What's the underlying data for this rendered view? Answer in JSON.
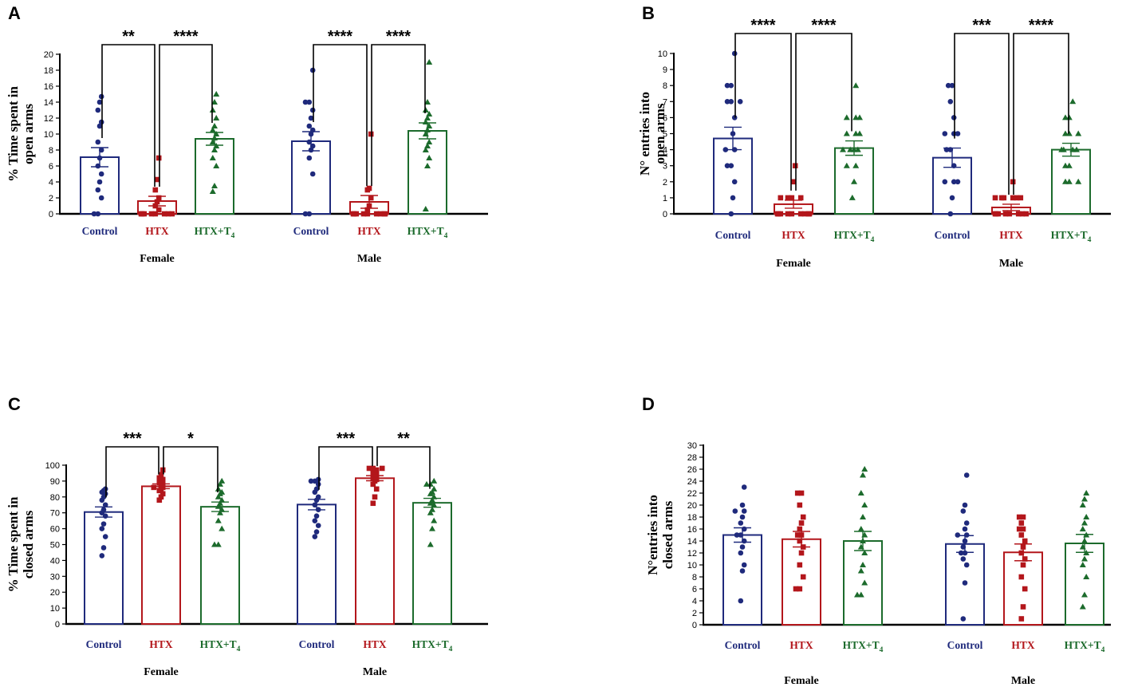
{
  "colors": {
    "control": "#1f2a7c",
    "htx": "#b3161b",
    "htxt4": "#1c6b2c",
    "axis": "#000000"
  },
  "chart_data": [
    {
      "panel": "A",
      "type": "bar",
      "ylabel": "% Time spent in open arms",
      "ylabel_lines": [
        "% Time spent in",
        "open arms"
      ],
      "ylim": [
        0,
        20
      ],
      "ticks": [
        0,
        2,
        4,
        6,
        8,
        10,
        12,
        14,
        16,
        18,
        20
      ],
      "groups": [
        {
          "name": "Female",
          "bars": [
            {
              "label": "Control",
              "mean": 7.1,
              "sem": 1.2,
              "points": [
                0,
                0,
                2,
                3,
                4,
                5,
                6,
                7,
                8,
                9,
                11,
                11.5,
                13,
                14,
                14.7
              ],
              "marker": "circle"
            },
            {
              "label": "HTX",
              "mean": 1.6,
              "sem": 0.6,
              "points": [
                0,
                0,
                0,
                0,
                0,
                0,
                0,
                0,
                0.5,
                1,
                1.5,
                2,
                3,
                4.3,
                7
              ],
              "marker": "square"
            },
            {
              "label": "HTX+T4",
              "mean": 9.4,
              "sem": 0.8,
              "points": [
                2.8,
                3.5,
                6,
                7,
                8,
                8.5,
                9,
                9.5,
                10,
                10.5,
                11,
                12,
                13,
                14,
                15
              ],
              "marker": "triangle"
            }
          ]
        },
        {
          "name": "Male",
          "bars": [
            {
              "label": "Control",
              "mean": 9.1,
              "sem": 1.2,
              "points": [
                0,
                0,
                5,
                7,
                8,
                8.5,
                9,
                10,
                10.5,
                11,
                12,
                13,
                14,
                14,
                18
              ],
              "marker": "circle"
            },
            {
              "label": "HTX",
              "mean": 1.5,
              "sem": 0.8,
              "points": [
                0,
                0,
                0,
                0,
                0,
                0,
                0,
                0,
                0,
                0.5,
                1,
                2,
                3,
                3.2,
                10
              ],
              "marker": "square"
            },
            {
              "label": "HTX+T4",
              "mean": 10.4,
              "sem": 1.0,
              "points": [
                0.6,
                6,
                7,
                8,
                8.5,
                9,
                10,
                10.5,
                11,
                11.5,
                12,
                12.5,
                13,
                14,
                19
              ],
              "marker": "triangle"
            }
          ]
        }
      ],
      "significance": [
        {
          "group": 0,
          "from": 0,
          "to": 1,
          "label": "**"
        },
        {
          "group": 0,
          "from": 1,
          "to": 2,
          "label": "****"
        },
        {
          "group": 1,
          "from": 0,
          "to": 1,
          "label": "****"
        },
        {
          "group": 1,
          "from": 1,
          "to": 2,
          "label": "****"
        }
      ]
    },
    {
      "panel": "B",
      "type": "bar",
      "ylabel": "N° entries into open arms",
      "ylabel_lines": [
        "N° entries into",
        "open arms"
      ],
      "ylim": [
        0,
        10
      ],
      "ticks": [
        0,
        1,
        2,
        3,
        4,
        5,
        6,
        7,
        8,
        9,
        10
      ],
      "groups": [
        {
          "name": "Female",
          "bars": [
            {
              "label": "Control",
              "mean": 4.7,
              "sem": 0.7,
              "points": [
                0,
                1,
                2,
                3,
                3,
                4,
                4,
                5,
                6,
                7,
                7,
                7,
                8,
                8,
                10
              ],
              "marker": "circle"
            },
            {
              "label": "HTX",
              "mean": 0.6,
              "sem": 0.25,
              "points": [
                0,
                0,
                0,
                0,
                0,
                0,
                0,
                0,
                0,
                1,
                1,
                1,
                1,
                2,
                3
              ],
              "marker": "square"
            },
            {
              "label": "HTX+T4",
              "mean": 4.1,
              "sem": 0.45,
              "points": [
                1,
                2,
                3,
                3,
                4,
                4,
                4,
                4,
                5,
                5,
                5,
                6,
                6,
                6,
                8
              ],
              "marker": "triangle"
            }
          ]
        },
        {
          "name": "Male",
          "bars": [
            {
              "label": "Control",
              "mean": 3.5,
              "sem": 0.6,
              "points": [
                0,
                1,
                2,
                2,
                2,
                3,
                4,
                4,
                5,
                5,
                5,
                6,
                7,
                8,
                8
              ],
              "marker": "circle"
            },
            {
              "label": "HTX",
              "mean": 0.4,
              "sem": 0.2,
              "points": [
                0,
                0,
                0,
                0,
                0,
                0,
                0,
                0,
                1,
                1,
                1,
                1,
                1,
                1,
                2
              ],
              "marker": "square"
            },
            {
              "label": "HTX+T4",
              "mean": 4.0,
              "sem": 0.4,
              "points": [
                2,
                2,
                2,
                3,
                3,
                4,
                4,
                4,
                4,
                5,
                5,
                5,
                6,
                6,
                7
              ],
              "marker": "triangle"
            }
          ]
        }
      ],
      "significance": [
        {
          "group": 0,
          "from": 0,
          "to": 1,
          "label": "****"
        },
        {
          "group": 0,
          "from": 1,
          "to": 2,
          "label": "****"
        },
        {
          "group": 1,
          "from": 0,
          "to": 1,
          "label": "***"
        },
        {
          "group": 1,
          "from": 1,
          "to": 2,
          "label": "****"
        }
      ]
    },
    {
      "panel": "C",
      "type": "bar",
      "ylabel": "% Time spent in closed arms",
      "ylabel_lines": [
        "% Time spent in",
        "closed arms"
      ],
      "ylim": [
        0,
        100
      ],
      "ticks": [
        0,
        10,
        20,
        30,
        40,
        50,
        60,
        70,
        80,
        90,
        100
      ],
      "groups": [
        {
          "name": "Female",
          "bars": [
            {
              "label": "Control",
              "mean": 70.5,
              "sem": 3.2,
              "points": [
                43,
                48,
                55,
                60,
                63,
                68,
                70,
                72,
                75,
                78,
                80,
                82,
                83,
                84,
                85
              ],
              "marker": "circle"
            },
            {
              "label": "HTX",
              "mean": 86.7,
              "sem": 1.5,
              "points": [
                78,
                80,
                82,
                84,
                85,
                86,
                86,
                87,
                88,
                89,
                90,
                91,
                92,
                94,
                97
              ],
              "marker": "square"
            },
            {
              "label": "HTX+T4",
              "mean": 73.8,
              "sem": 3.0,
              "points": [
                50,
                50,
                60,
                65,
                70,
                72,
                74,
                76,
                78,
                80,
                82,
                83,
                85,
                88,
                90
              ],
              "marker": "triangle"
            }
          ]
        },
        {
          "name": "Male",
          "bars": [
            {
              "label": "Control",
              "mean": 75.2,
              "sem": 3.3,
              "points": [
                55,
                58,
                62,
                65,
                68,
                72,
                75,
                78,
                80,
                83,
                85,
                88,
                90,
                90,
                91
              ],
              "marker": "circle"
            },
            {
              "label": "HTX",
              "mean": 91.8,
              "sem": 1.6,
              "points": [
                76,
                80,
                85,
                88,
                90,
                91,
                92,
                93,
                94,
                95,
                96,
                97,
                98,
                98,
                98
              ],
              "marker": "square"
            },
            {
              "label": "HTX+T4",
              "mean": 76.3,
              "sem": 2.8,
              "points": [
                50,
                60,
                65,
                70,
                72,
                75,
                76,
                78,
                80,
                82,
                83,
                85,
                88,
                88,
                90
              ],
              "marker": "triangle"
            }
          ]
        }
      ],
      "significance": [
        {
          "group": 0,
          "from": 0,
          "to": 1,
          "label": "***"
        },
        {
          "group": 0,
          "from": 1,
          "to": 2,
          "label": "*"
        },
        {
          "group": 1,
          "from": 0,
          "to": 1,
          "label": "***"
        },
        {
          "group": 1,
          "from": 1,
          "to": 2,
          "label": "**"
        }
      ]
    },
    {
      "panel": "D",
      "type": "bar",
      "ylabel": "N°entries into closed arms",
      "ylabel_lines": [
        "N°entries into",
        "closed arms"
      ],
      "ylim": [
        0,
        30
      ],
      "ticks": [
        0,
        2,
        4,
        6,
        8,
        10,
        12,
        14,
        16,
        18,
        20,
        22,
        24,
        26,
        28,
        30
      ],
      "groups": [
        {
          "name": "Female",
          "bars": [
            {
              "label": "Control",
              "mean": 15.0,
              "sem": 1.2,
              "points": [
                4,
                9,
                10,
                12,
                13,
                14,
                15,
                15,
                16,
                17,
                18,
                19,
                19,
                20,
                23
              ],
              "marker": "circle"
            },
            {
              "label": "HTX",
              "mean": 14.3,
              "sem": 1.3,
              "points": [
                6,
                6,
                8,
                10,
                12,
                13,
                14,
                15,
                15,
                16,
                17,
                18,
                20,
                22,
                22
              ],
              "marker": "square"
            },
            {
              "label": "HTX+T4",
              "mean": 14.0,
              "sem": 1.6,
              "points": [
                5,
                5,
                7,
                9,
                10,
                12,
                13,
                14,
                15,
                16,
                18,
                20,
                22,
                25,
                26
              ],
              "marker": "triangle"
            }
          ]
        },
        {
          "name": "Male",
          "bars": [
            {
              "label": "Control",
              "mean": 13.5,
              "sem": 1.4,
              "points": [
                1,
                7,
                10,
                11,
                12,
                12,
                13,
                14,
                15,
                15,
                16,
                17,
                19,
                20,
                25
              ],
              "marker": "circle"
            },
            {
              "label": "HTX",
              "mean": 12.1,
              "sem": 1.4,
              "points": [
                1,
                3,
                6,
                8,
                10,
                11,
                12,
                13,
                14,
                15,
                16,
                16,
                17,
                18,
                18
              ],
              "marker": "square"
            },
            {
              "label": "HTX+T4",
              "mean": 13.6,
              "sem": 1.5,
              "points": [
                3,
                5,
                8,
                10,
                11,
                12,
                13,
                14,
                15,
                16,
                17,
                18,
                20,
                21,
                22
              ],
              "marker": "triangle"
            }
          ]
        }
      ],
      "significance": []
    }
  ]
}
